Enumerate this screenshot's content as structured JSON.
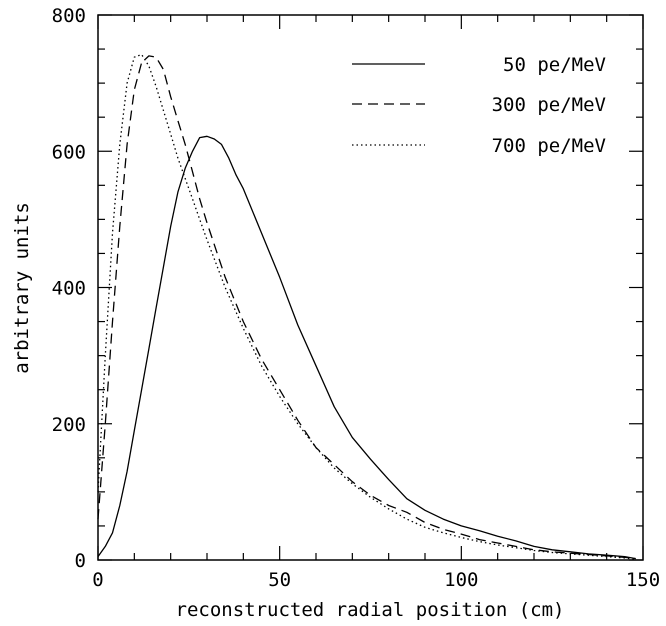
{
  "chart_data": {
    "type": "line",
    "title": "",
    "xlabel": "reconstructed radial position (cm)",
    "ylabel": "arbitrary units",
    "xlim": [
      0,
      150
    ],
    "ylim": [
      0,
      800
    ],
    "xticks": [
      0,
      50,
      100,
      150
    ],
    "yticks": [
      0,
      200,
      400,
      600,
      800
    ],
    "xtick_labels": [
      "0",
      "50",
      "100",
      "150"
    ],
    "ytick_labels": [
      "0",
      "200",
      "400",
      "600",
      "800"
    ],
    "grid": false,
    "legend_position": "top-right",
    "series": [
      {
        "name": "50 pe/MeV",
        "style": "solid",
        "x": [
          0,
          2,
          4,
          6,
          8,
          10,
          12,
          14,
          16,
          18,
          20,
          22,
          24,
          26,
          28,
          30,
          32,
          34,
          36,
          38,
          40,
          45,
          50,
          55,
          60,
          65,
          70,
          75,
          80,
          85,
          90,
          95,
          100,
          105,
          110,
          115,
          120,
          125,
          130,
          135,
          140,
          145,
          148
        ],
        "y": [
          5,
          20,
          40,
          80,
          130,
          190,
          250,
          310,
          370,
          430,
          490,
          540,
          575,
          600,
          620,
          622,
          618,
          610,
          590,
          565,
          545,
          480,
          415,
          345,
          285,
          225,
          180,
          148,
          118,
          90,
          73,
          60,
          50,
          43,
          35,
          28,
          20,
          15,
          12,
          9,
          7,
          5,
          2
        ]
      },
      {
        "name": "300 pe/MeV",
        "style": "dashed",
        "x": [
          0,
          2,
          4,
          6,
          8,
          10,
          12,
          14,
          16,
          18,
          20,
          22,
          24,
          26,
          28,
          30,
          35,
          40,
          45,
          50,
          55,
          60,
          65,
          70,
          75,
          80,
          85,
          90,
          95,
          100,
          105,
          110,
          115,
          120,
          125,
          130,
          135,
          140,
          145,
          148
        ],
        "y": [
          60,
          200,
          350,
          490,
          610,
          690,
          730,
          740,
          738,
          720,
          680,
          645,
          610,
          570,
          530,
          495,
          415,
          350,
          295,
          250,
          205,
          165,
          140,
          115,
          95,
          80,
          70,
          55,
          45,
          38,
          30,
          25,
          20,
          15,
          12,
          10,
          8,
          6,
          4,
          2
        ]
      },
      {
        "name": "700 pe/MeV",
        "style": "dotted",
        "x": [
          0,
          2,
          4,
          6,
          8,
          10,
          12,
          14,
          16,
          18,
          20,
          22,
          24,
          26,
          28,
          30,
          35,
          40,
          45,
          50,
          55,
          60,
          65,
          70,
          75,
          80,
          85,
          90,
          95,
          100,
          105,
          110,
          115,
          120,
          125,
          130,
          135,
          140,
          145,
          148
        ],
        "y": [
          100,
          300,
          480,
          610,
          700,
          738,
          742,
          725,
          695,
          660,
          625,
          590,
          560,
          530,
          500,
          470,
          400,
          340,
          285,
          240,
          200,
          165,
          135,
          112,
          92,
          75,
          60,
          48,
          40,
          33,
          27,
          22,
          18,
          14,
          11,
          9,
          7,
          5,
          3,
          1
        ]
      }
    ]
  }
}
